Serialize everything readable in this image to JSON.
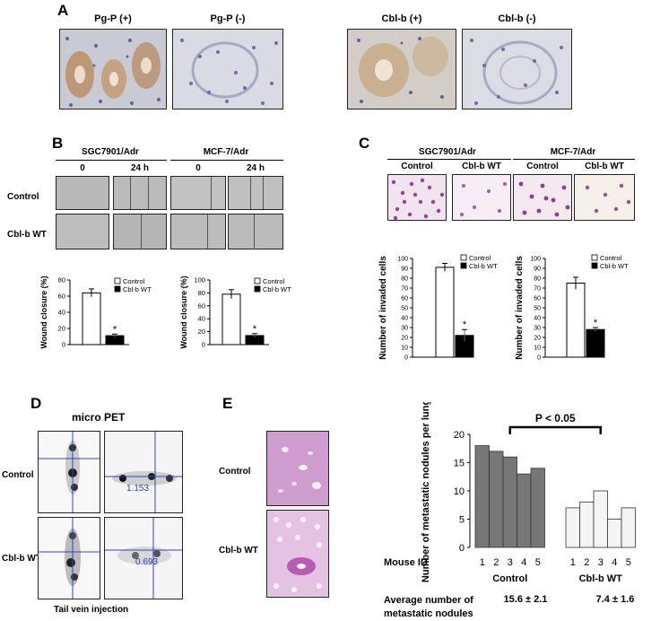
{
  "panels": {
    "A": {
      "label": "A",
      "images": [
        "Pg-P (+)",
        "Pg-P (-)",
        "Cbl-b (+)",
        "Cbl-b (-)"
      ]
    },
    "B": {
      "label": "B",
      "groups": [
        "SGC7901/Adr",
        "MCF-7/Adr"
      ],
      "time_labels": [
        "0",
        "24 h",
        "0",
        "24 h"
      ],
      "row_labels": [
        "Control",
        "Cbl-b WT"
      ]
    },
    "C": {
      "label": "C",
      "groups": [
        "SGC7901/Adr",
        "MCF-7/Adr"
      ],
      "column_labels": [
        "Control",
        "Cbl-b WT",
        "Control",
        "Cbl-b WT"
      ]
    },
    "D": {
      "label": "D",
      "title": "micro PET",
      "row_labels": [
        "Control",
        "Cbl-b WT"
      ],
      "values": [
        "1.153",
        "0.693"
      ],
      "caption": "Tail vein injection"
    },
    "E": {
      "label": "E",
      "row_labels": [
        "Control",
        "Cbl-b WT"
      ],
      "significance": "P < 0.05",
      "avg_label_line1": "Average number of",
      "avg_label_line2": "metastatic nodules",
      "avg_control": "15.6 ± 2.1",
      "avg_cblb": "7.4 ± 1.6"
    }
  },
  "chart_data": [
    {
      "id": "B-SGC7901",
      "type": "bar",
      "categories": [
        "Control",
        "Cbl-b WT"
      ],
      "values": [
        64,
        11
      ],
      "errors": [
        5,
        2
      ],
      "significance": [
        "",
        "*"
      ],
      "ylabel": "Wound closure (%)",
      "ylim": [
        0,
        80
      ],
      "yticks": [
        "0",
        "20",
        "40",
        "60",
        "80"
      ],
      "legend": [
        "Control",
        "Cbl-b WT"
      ],
      "colors": [
        "#ffffff",
        "#000000"
      ]
    },
    {
      "id": "B-MCF7",
      "type": "bar",
      "categories": [
        "Control",
        "Cbl-b WT"
      ],
      "values": [
        78,
        14
      ],
      "errors": [
        7,
        3
      ],
      "significance": [
        "",
        "*"
      ],
      "ylabel": "Wound closure (%)",
      "ylim": [
        0,
        100
      ],
      "yticks": [
        "0",
        "20",
        "40",
        "60",
        "80",
        "100"
      ],
      "legend": [
        "Control",
        "Cbl-b WT"
      ],
      "colors": [
        "#ffffff",
        "#000000"
      ]
    },
    {
      "id": "C-SGC7901",
      "type": "bar",
      "categories": [
        "Control",
        "Cbl-b WT"
      ],
      "values": [
        91,
        22
      ],
      "errors": [
        4,
        6
      ],
      "significance": [
        "",
        "*"
      ],
      "ylabel": "Number of invaded cells",
      "ylim": [
        0,
        100
      ],
      "yticks": [
        "0",
        "10",
        "20",
        "30",
        "40",
        "50",
        "60",
        "70",
        "80",
        "90",
        "100"
      ],
      "legend": [
        "Control",
        "Cbl-b WT"
      ],
      "colors": [
        "#ffffff",
        "#000000"
      ]
    },
    {
      "id": "C-MCF7",
      "type": "bar",
      "categories": [
        "Control",
        "Cbl-b WT"
      ],
      "values": [
        75,
        28
      ],
      "errors": [
        6,
        2
      ],
      "significance": [
        "",
        "*"
      ],
      "ylabel": "Number of invaded cells",
      "ylim": [
        0,
        100
      ],
      "yticks": [
        "0",
        "10",
        "20",
        "30",
        "40",
        "50",
        "60",
        "70",
        "80",
        "90",
        "100"
      ],
      "legend": [
        "Control",
        "Cbl-b WT"
      ],
      "colors": [
        "#ffffff",
        "#000000"
      ]
    },
    {
      "id": "E-nodules",
      "type": "bar",
      "x_title": "Mouse ID",
      "ylabel": "Number of metastatic nodules per lung",
      "ylim": [
        0,
        20
      ],
      "yticks": [
        "0",
        "5",
        "10",
        "15",
        "20"
      ],
      "series": [
        {
          "name": "Control",
          "ids": [
            "1",
            "2",
            "3",
            "4",
            "5"
          ],
          "values": [
            18,
            17,
            16,
            13,
            14
          ],
          "color": "#777777"
        },
        {
          "name": "Cbl-b WT",
          "ids": [
            "1",
            "2",
            "3",
            "4",
            "5"
          ],
          "values": [
            7,
            8,
            10,
            5,
            7
          ],
          "color": "#f4f4f4"
        }
      ]
    }
  ]
}
